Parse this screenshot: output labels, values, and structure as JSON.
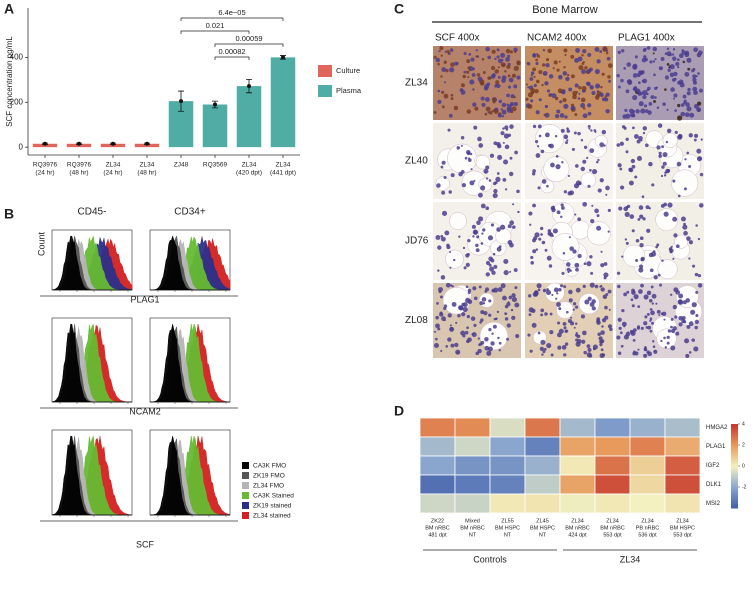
{
  "panel_labels": [
    "A",
    "B",
    "C",
    "D"
  ],
  "chart_data": [
    {
      "type": "bar",
      "y_label": "SCF concentration pg/mL",
      "categories": [
        [
          "RQ3976",
          "(24 hr)"
        ],
        [
          "RQ3976",
          "(48 hr)"
        ],
        [
          "ZL34",
          "(24 hr)"
        ],
        [
          "ZL34",
          "(48 hr)"
        ],
        [
          "ZJ48"
        ],
        [
          "RQ3569"
        ],
        [
          "ZL34",
          "(420 dpt)"
        ],
        [
          "ZL34",
          "(441 dpt)"
        ]
      ],
      "series": [
        {
          "name": "Culture",
          "color": "#e0665c",
          "values": [
            15,
            15,
            15,
            15,
            null,
            null,
            null,
            null
          ],
          "errors": [
            3,
            3,
            3,
            3,
            null,
            null,
            null,
            null
          ]
        },
        {
          "name": "Plasma",
          "color": "#4fada6",
          "values": [
            null,
            null,
            null,
            null,
            205,
            190,
            272,
            400
          ],
          "errors": [
            null,
            null,
            null,
            null,
            45,
            15,
            30,
            8
          ]
        }
      ],
      "ylim": [
        -35,
        620
      ],
      "yticks": [
        0,
        200,
        400
      ],
      "annotations": [
        "6.4e−05",
        "0.021",
        "0.00059",
        "0.00082"
      ]
    },
    {
      "type": "heatmap",
      "rows": [
        "HMGA2",
        "PLAG1",
        "IGF2",
        "DLK1",
        "MSI2"
      ],
      "columns": [
        [
          "ZK22",
          "BM nRBC",
          "481 dpt"
        ],
        [
          "Mixed",
          "BM nRBC",
          "NT"
        ],
        [
          "ZL55",
          "BM HSPC",
          "NT"
        ],
        [
          "ZL45",
          "BM HSPC",
          "NT"
        ],
        [
          "ZL34",
          "BM nRBC",
          "424 dpt"
        ],
        [
          "ZL34",
          "BM nRBC",
          "553 dpt"
        ],
        [
          "ZL34",
          "PB nRBC",
          "536 dpt"
        ],
        [
          "ZL34",
          "BM HSPC",
          "553 dpt"
        ]
      ],
      "values": [
        [
          2.5,
          2.3,
          -0.5,
          2.7,
          -1.5,
          -2.3,
          -1.7,
          -1.4
        ],
        [
          -1.5,
          -0.7,
          -2.0,
          -3.0,
          1.8,
          2.0,
          2.5,
          1.6
        ],
        [
          -2.0,
          -2.5,
          -2.5,
          -1.7,
          0.2,
          2.8,
          0.8,
          3.2
        ],
        [
          -3.5,
          -3.2,
          -3.0,
          -1.0,
          1.8,
          3.5,
          0.6,
          3.5
        ],
        [
          -0.7,
          -0.8,
          0.2,
          0.3,
          -0.1,
          0.2,
          0.0,
          0.3
        ]
      ],
      "zlim": [
        -4,
        4
      ],
      "zticks": [
        4,
        2,
        0,
        -2
      ],
      "groups": [
        "Controls",
        "ZL34"
      ]
    }
  ],
  "flow": {
    "column_titles": [
      "CD45-",
      "CD34+"
    ],
    "y_label": "Count",
    "markers": [
      "PLAG1",
      "NCAM2",
      "SCF"
    ],
    "legend": [
      {
        "name": "CA3K FMO",
        "color": "#000000"
      },
      {
        "name": "ZK19 FMO",
        "color": "#555555"
      },
      {
        "name": "ZL34 FMO",
        "color": "#b5b5b5"
      },
      {
        "name": "CA3K Stained",
        "color": "#66bb33"
      },
      {
        "name": "ZK19 stained",
        "color": "#2c2f8a"
      },
      {
        "name": "ZL34 stained",
        "color": "#d42020"
      }
    ]
  },
  "ihc": {
    "title": "Bone Marrow",
    "columns": [
      "SCF 400x",
      "NCAM2 400x",
      "PLAG1 400x"
    ],
    "rows": [
      "ZL34",
      "ZL40",
      "JD76",
      "ZL08"
    ]
  }
}
